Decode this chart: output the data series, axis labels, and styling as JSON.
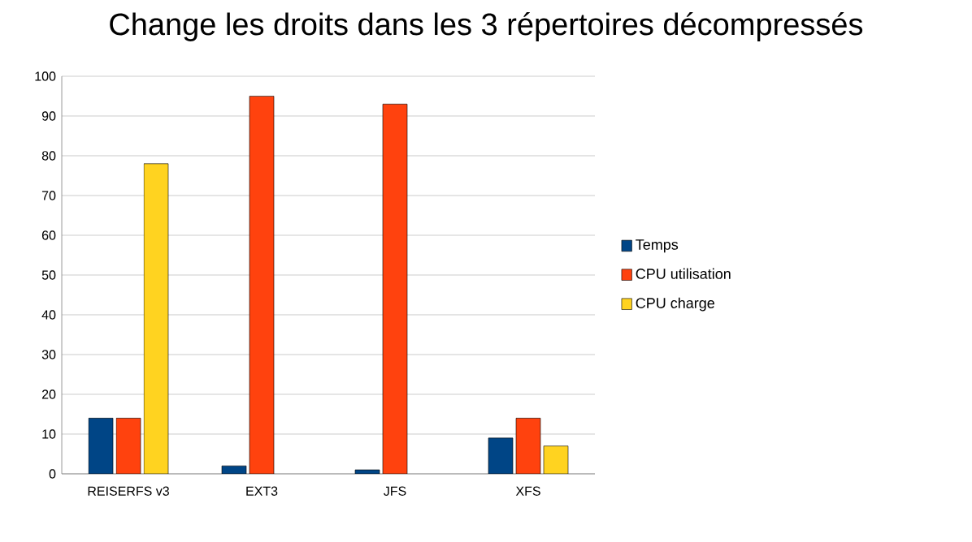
{
  "chart_data": {
    "type": "bar",
    "title": "Change les droits dans les 3 répertoires décompressés",
    "categories": [
      "REISERFS v3",
      "EXT3",
      "JFS",
      "XFS"
    ],
    "series": [
      {
        "name": "Temps",
        "color": "#004586",
        "values": [
          14,
          2,
          1,
          9
        ]
      },
      {
        "name": "CPU utilisation",
        "color": "#ff420e",
        "values": [
          14,
          95,
          93,
          14
        ]
      },
      {
        "name": "CPU charge",
        "color": "#ffd320",
        "values": [
          78,
          null,
          null,
          7
        ]
      }
    ],
    "ylim": [
      0,
      100
    ],
    "yticks": [
      0,
      10,
      20,
      30,
      40,
      50,
      60,
      70,
      80,
      90,
      100
    ],
    "grid": "y",
    "legend": "right"
  }
}
